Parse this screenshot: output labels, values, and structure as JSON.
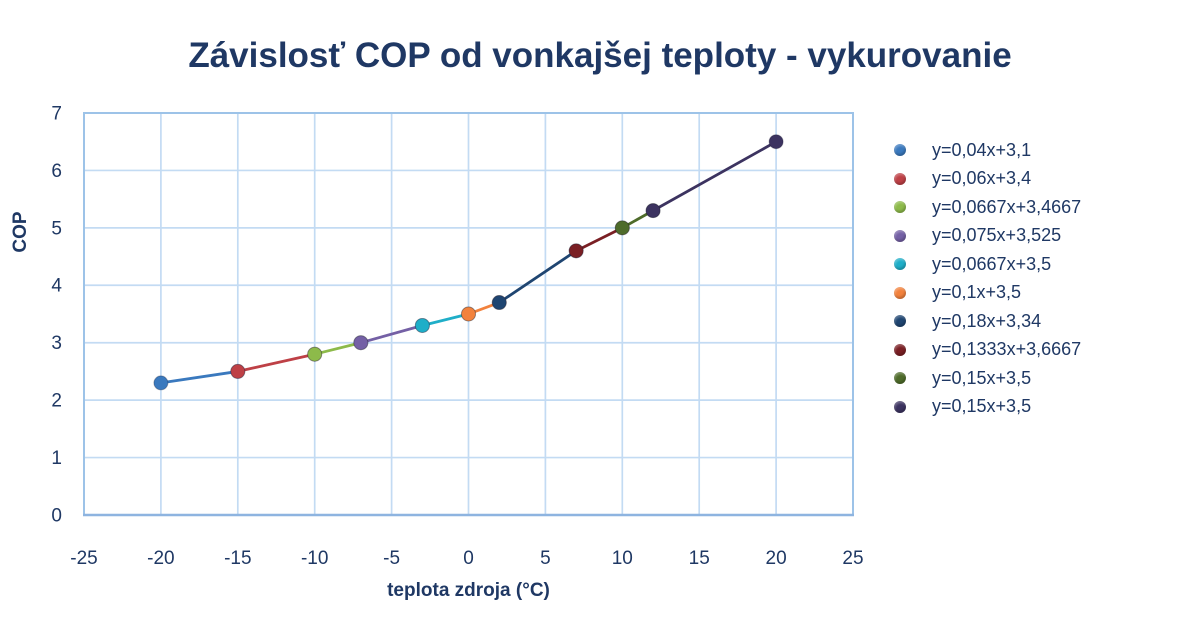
{
  "colors": {
    "title_text": "#1F3864",
    "axis_text": "#1F3864",
    "gridline": "#C3DBF3",
    "plot_border": "#9DC3E8",
    "axis_line_bottom": "#8EB4E0",
    "background": "#FFFFFF"
  },
  "chart_data": {
    "type": "scatter",
    "title": "Závislosť COP od vonkajšej teploty - vykurovanie",
    "xlabel": "teplota zdroja (°C)",
    "ylabel": "COP",
    "xlim": [
      -25,
      25
    ],
    "ylim": [
      0,
      7
    ],
    "grid": true,
    "legend_position": "right",
    "x_ticks": [
      -25,
      -20,
      -15,
      -10,
      -5,
      0,
      5,
      10,
      15,
      20,
      25
    ],
    "y_ticks": [
      0,
      1,
      2,
      3,
      4,
      5,
      6,
      7
    ],
    "series": [
      {
        "name": "y=0,04x+3,1",
        "color": "#3A79BE",
        "points": [
          [
            -20,
            2.3
          ],
          [
            -15,
            2.5
          ]
        ]
      },
      {
        "name": "y=0,06x+3,4",
        "color": "#BE4046",
        "points": [
          [
            -15,
            2.5
          ],
          [
            -10,
            2.8
          ]
        ]
      },
      {
        "name": "y=0,0667x+3,4667",
        "color": "#8DBA4A",
        "points": [
          [
            -10,
            2.8
          ],
          [
            -7,
            3.0
          ]
        ]
      },
      {
        "name": "y=0,075x+3,525",
        "color": "#7460A5",
        "points": [
          [
            -7,
            3.0
          ],
          [
            -3,
            3.3
          ]
        ]
      },
      {
        "name": "y=0,0667x+3,5",
        "color": "#1FAEC8",
        "points": [
          [
            -3,
            3.3
          ],
          [
            0,
            3.5
          ]
        ]
      },
      {
        "name": "y=0,1x+3,5",
        "color": "#F2823D",
        "points": [
          [
            0,
            3.5
          ],
          [
            2,
            3.7
          ]
        ]
      },
      {
        "name": "y=0,18x+3,34",
        "color": "#1F4571",
        "points": [
          [
            2,
            3.7
          ],
          [
            7,
            4.6
          ]
        ]
      },
      {
        "name": "y=0,1333x+3,6667",
        "color": "#7A1F24",
        "points": [
          [
            7,
            4.6
          ],
          [
            10,
            5.0
          ]
        ]
      },
      {
        "name": "y=0,15x+3,5",
        "color": "#4E6B2A",
        "points": [
          [
            10,
            5.0
          ],
          [
            12,
            5.3
          ]
        ]
      },
      {
        "name": "y=0,15x+3,5",
        "color": "#3C3360",
        "points": [
          [
            12,
            5.3
          ],
          [
            20,
            6.5
          ]
        ]
      }
    ]
  }
}
